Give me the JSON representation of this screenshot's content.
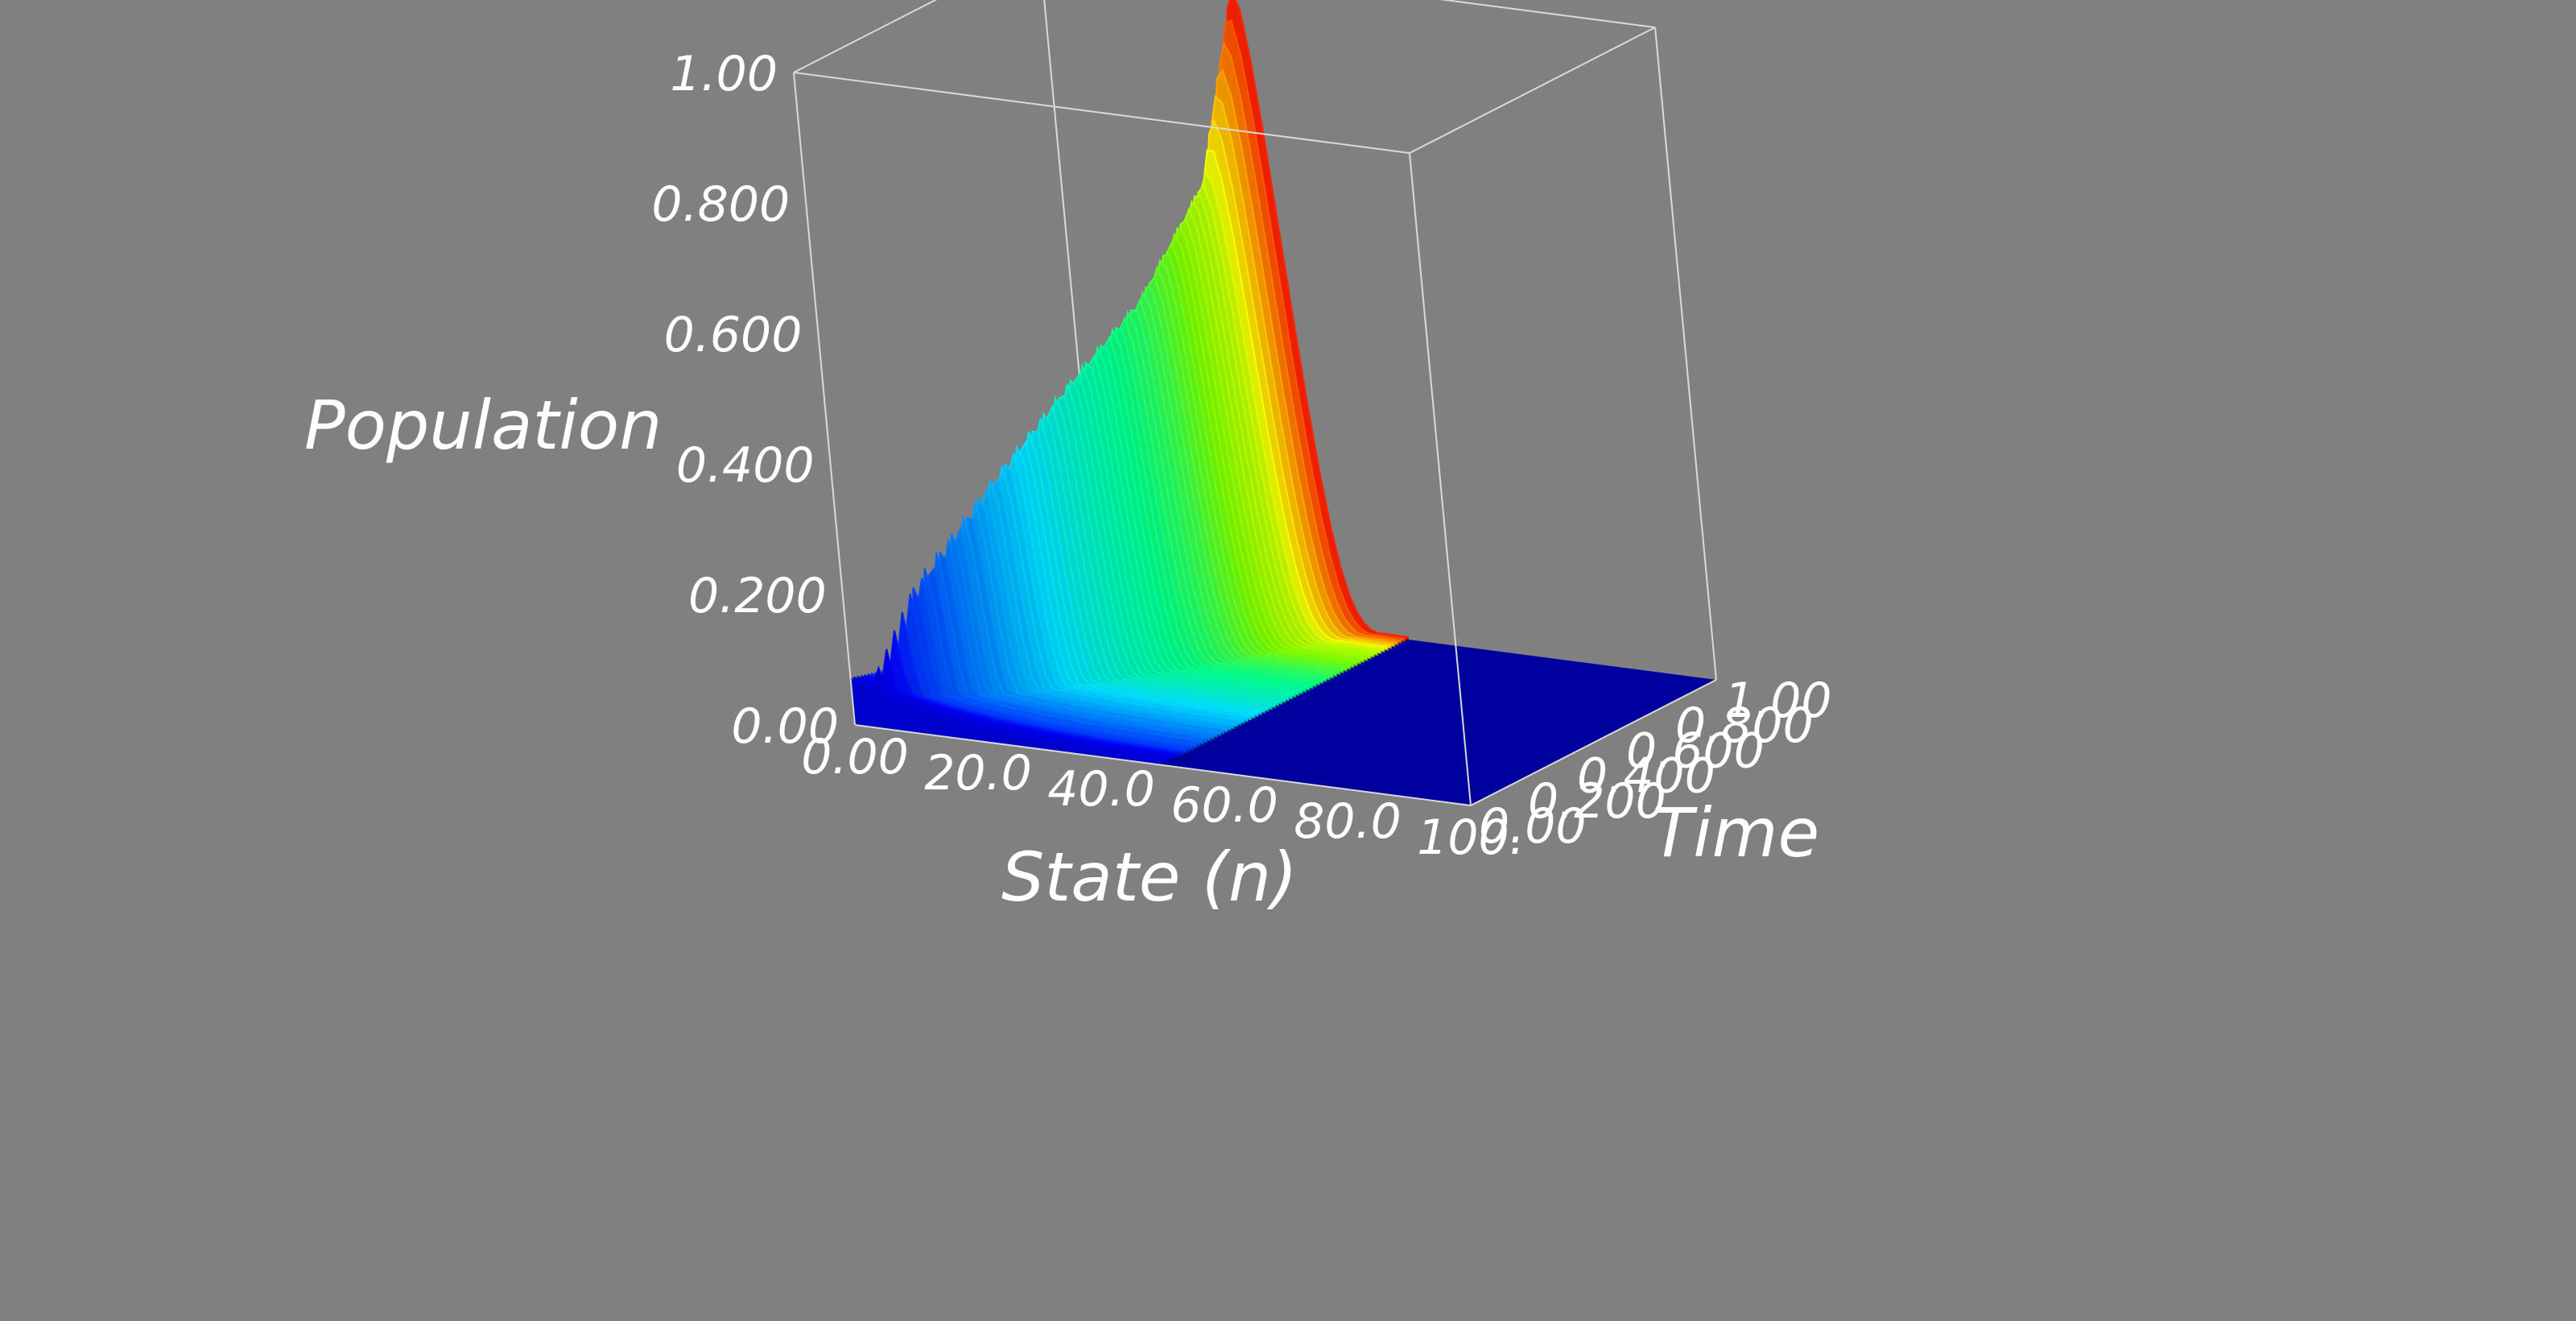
{
  "chart_data": {
    "type": "surface-3d",
    "title": "",
    "xlabel": "State (n)",
    "ylabel": "Time",
    "zlabel": "Population",
    "xlim": [
      0,
      100
    ],
    "ylim": [
      0,
      1
    ],
    "zlim": [
      0,
      1
    ],
    "x_ticks": [
      "0.00",
      "20.0",
      "40.0",
      "60.0",
      "80.0",
      "100."
    ],
    "y_ticks": [
      "0.00",
      "0.200",
      "0.400",
      "0.600",
      "0.800",
      "1.00"
    ],
    "z_ticks": [
      "0.00",
      "0.200",
      "0.400",
      "0.600",
      "0.800",
      "1.00"
    ],
    "colormap": [
      "#0000b4",
      "#0000ff",
      "#0070ff",
      "#00e0ff",
      "#00ff90",
      "#80ff00",
      "#ffff00",
      "#ff9000",
      "#ff0000"
    ],
    "background_color": "#808080",
    "series": [
      {
        "time": 0.1,
        "peak_state": 7,
        "peak_value": 0.2
      },
      {
        "time": 0.3,
        "peak_state": 13,
        "peak_value": 0.33
      },
      {
        "time": 0.5,
        "peak_state": 19,
        "peak_value": 0.45
      },
      {
        "time": 0.7,
        "peak_state": 24,
        "peak_value": 0.55
      },
      {
        "time": 0.9,
        "peak_state": 28,
        "peak_value": 0.7
      },
      {
        "time": 1.0,
        "peak_state": 31,
        "peak_value": 0.97
      }
    ]
  }
}
